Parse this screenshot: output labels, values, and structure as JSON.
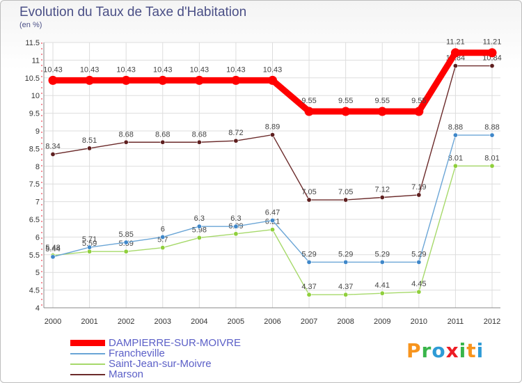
{
  "chart_data": {
    "type": "line",
    "title": "Evolution du Taux de Taxe d'Habitation",
    "subtitle": "(en %)",
    "categories": [
      "2000",
      "2001",
      "2002",
      "2003",
      "2004",
      "2005",
      "2006",
      "2007",
      "2008",
      "2009",
      "2010",
      "2011",
      "2012"
    ],
    "ylim": [
      4,
      11.5
    ],
    "yticks": [
      "4",
      "4.5",
      "5",
      "5.5",
      "6",
      "6.5",
      "7",
      "7.5",
      "8",
      "8.5",
      "9",
      "9.5",
      "10",
      "10.5",
      "11",
      "11.5"
    ],
    "grid": true,
    "legend_position": "bottom-left",
    "series": [
      {
        "name": "DAMPIERRE-SUR-MOIVRE",
        "color": "#ff0000",
        "values": [
          10.43,
          10.43,
          10.43,
          10.43,
          10.43,
          10.43,
          10.43,
          9.55,
          9.55,
          9.55,
          9.55,
          11.21,
          11.21
        ],
        "labels": [
          "10.43",
          "10.43",
          "10.43",
          "10.43",
          "10.43",
          "10.43",
          "10.43",
          "9.55",
          "9.55",
          "9.55",
          "9.55",
          "11.21",
          "11.21"
        ]
      },
      {
        "name": "Francheville",
        "color": "#6aa5d6",
        "marker_color": "#3f87c9",
        "values": [
          5.44,
          5.71,
          5.85,
          6,
          6.3,
          6.3,
          6.47,
          5.29,
          5.29,
          5.29,
          5.29,
          8.88,
          8.88
        ],
        "labels": [
          "5.44",
          "5.71",
          "5.85",
          "6",
          "6.3",
          "6.3",
          "6.47",
          "5.29",
          "5.29",
          "5.29",
          "5.29",
          "8.88",
          "8.88"
        ]
      },
      {
        "name": "Saint-Jean-sur-Moivre",
        "color": "#a6d96a",
        "marker_color": "#8fcf3c",
        "values": [
          5.48,
          5.59,
          5.59,
          5.7,
          5.98,
          6.09,
          6.21,
          4.37,
          4.37,
          4.41,
          4.45,
          8.01,
          8.01
        ],
        "labels": [
          "5.48",
          "5.59",
          "5.59",
          "5.7",
          "5.98",
          "6.09",
          "6.21",
          "4.37",
          "4.37",
          "4.41",
          "4.45",
          "8.01",
          "8.01"
        ]
      },
      {
        "name": "Marson",
        "color": "#6b2a2a",
        "marker_color": "#5e1f1f",
        "values": [
          8.34,
          8.51,
          8.68,
          8.68,
          8.68,
          8.72,
          8.89,
          7.05,
          7.05,
          7.12,
          7.19,
          10.84,
          10.84
        ],
        "labels": [
          "8.34",
          "8.51",
          "8.68",
          "8.68",
          "8.68",
          "8.72",
          "8.89",
          "7.05",
          "7.05",
          "7.12",
          "7.19",
          "10.84",
          "10.84"
        ]
      }
    ]
  },
  "legend": {
    "items": [
      {
        "label": "DAMPIERRE-SUR-MOIVRE",
        "color": "#ff0000"
      },
      {
        "label": "Francheville",
        "color": "#6aa5d6"
      },
      {
        "label": "Saint-Jean-sur-Moivre",
        "color": "#a6d96a"
      },
      {
        "label": "Marson",
        "color": "#6b2a2a"
      }
    ]
  },
  "logo": {
    "text": "Proxiti",
    "letters": [
      "P",
      "r",
      "o",
      "x",
      "i",
      "t",
      "i"
    ],
    "colors": [
      "#f7941d",
      "#39b54a",
      "#2e9bd6",
      "#ed1c24",
      "#39b54a",
      "#f7941d",
      "#2e9bd6"
    ]
  }
}
